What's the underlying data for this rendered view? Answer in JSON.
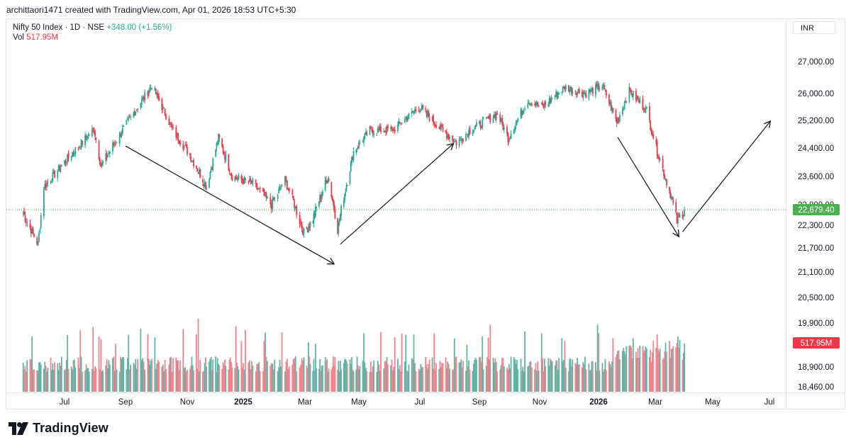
{
  "header": {
    "attribution": "archittaori1471 created with TradingView.com, Apr 01, 2026 18:53 UTC+5:30"
  },
  "legend": {
    "symbol": "Nifty 50 Index · 1D · NSE",
    "change": "+348.00 (+1.56%)",
    "vol_label": "Vol",
    "vol_value": "517.95M"
  },
  "currency": "INR",
  "footer": {
    "brand": "TradingView"
  },
  "colors": {
    "up": "#22ab94",
    "down": "#f23645",
    "last_price": "#4caf50",
    "vol_up": "#5fb4a6",
    "vol_down": "#f4838c"
  },
  "chart_data": {
    "type": "candlestick",
    "title": "Nifty 50 Index · 1D · NSE",
    "currency": "INR",
    "y_ticks": [
      27000,
      26000,
      25200,
      24400,
      23600,
      22800,
      22300,
      21700,
      21100,
      20500,
      19900,
      18900,
      18460
    ],
    "y_tick_labels": [
      "27,000.00",
      "26,000.00",
      "25,200.00",
      "24,400.00",
      "23,600.00",
      "22,800.00",
      "22,300.00",
      "21,700.00",
      "21,100.00",
      "20,500.00",
      "19,900.00",
      "18,900.00",
      "18,460.00"
    ],
    "x_tick_labels": [
      "Jul",
      "Sep",
      "Nov",
      "2025",
      "Mar",
      "May",
      "Jul",
      "Sep",
      "Nov",
      "2026",
      "Mar",
      "May",
      "Jul"
    ],
    "x_tick_dates": [
      "2024-07-01",
      "2024-09-01",
      "2024-11-01",
      "2025-01-01",
      "2025-03-01",
      "2025-05-01",
      "2025-07-01",
      "2025-09-01",
      "2025-11-01",
      "2026-01-01",
      "2026-03-01",
      "2026-05-01",
      "2026-07-01"
    ],
    "x_range": [
      "2024-05-20",
      "2026-08-05"
    ],
    "price_series": {
      "name": "Nifty 50 Index",
      "points": [
        [
          "2024-05-20",
          22600
        ],
        [
          "2024-06-04",
          21800
        ],
        [
          "2024-06-10",
          23300
        ],
        [
          "2024-07-01",
          24000
        ],
        [
          "2024-07-31",
          24950
        ],
        [
          "2024-08-07",
          23900
        ],
        [
          "2024-09-01",
          25050
        ],
        [
          "2024-09-27",
          26250
        ],
        [
          "2024-10-18",
          24900
        ],
        [
          "2024-11-04",
          24200
        ],
        [
          "2024-11-22",
          23300
        ],
        [
          "2024-12-05",
          24700
        ],
        [
          "2024-12-20",
          23600
        ],
        [
          "2025-01-10",
          23400
        ],
        [
          "2025-01-28",
          22800
        ],
        [
          "2025-02-10",
          23500
        ],
        [
          "2025-02-28",
          22100
        ],
        [
          "2025-03-10",
          22450
        ],
        [
          "2025-03-27",
          23600
        ],
        [
          "2025-04-07",
          22200
        ],
        [
          "2025-04-25",
          24300
        ],
        [
          "2025-05-12",
          24900
        ],
        [
          "2025-06-06",
          24950
        ],
        [
          "2025-06-30",
          25600
        ],
        [
          "2025-07-25",
          24900
        ],
        [
          "2025-08-08",
          24550
        ],
        [
          "2025-08-22",
          24900
        ],
        [
          "2025-09-19",
          25400
        ],
        [
          "2025-09-30",
          24700
        ],
        [
          "2025-10-20",
          25800
        ],
        [
          "2025-11-04",
          25600
        ],
        [
          "2025-11-27",
          26200
        ],
        [
          "2025-12-19",
          26000
        ],
        [
          "2026-01-05",
          26250
        ],
        [
          "2026-01-20",
          25150
        ],
        [
          "2026-02-02",
          26100
        ],
        [
          "2026-02-20",
          25500
        ],
        [
          "2026-03-02",
          24400
        ],
        [
          "2026-03-16",
          23200
        ],
        [
          "2026-03-24",
          22400
        ],
        [
          "2026-04-01",
          22679.4
        ]
      ]
    },
    "last_price": 22679.4,
    "last_price_label": "22,679.40",
    "volume_last": 517.95,
    "volume_last_label": "517.95M",
    "volume_unit": "M",
    "annotations": [
      {
        "type": "arrow",
        "from": [
          "2024-09-01",
          24460
        ],
        "to": [
          "2025-04-03",
          21300
        ]
      },
      {
        "type": "arrow",
        "from": [
          "2025-04-10",
          21800
        ],
        "to": [
          "2025-08-05",
          24530
        ]
      },
      {
        "type": "arrow",
        "from": [
          "2026-01-21",
          24710
        ],
        "to": [
          "2026-03-26",
          22000
        ]
      },
      {
        "type": "arrow",
        "from": [
          "2026-03-30",
          22130
        ],
        "to": [
          "2026-07-02",
          25180
        ]
      }
    ]
  }
}
